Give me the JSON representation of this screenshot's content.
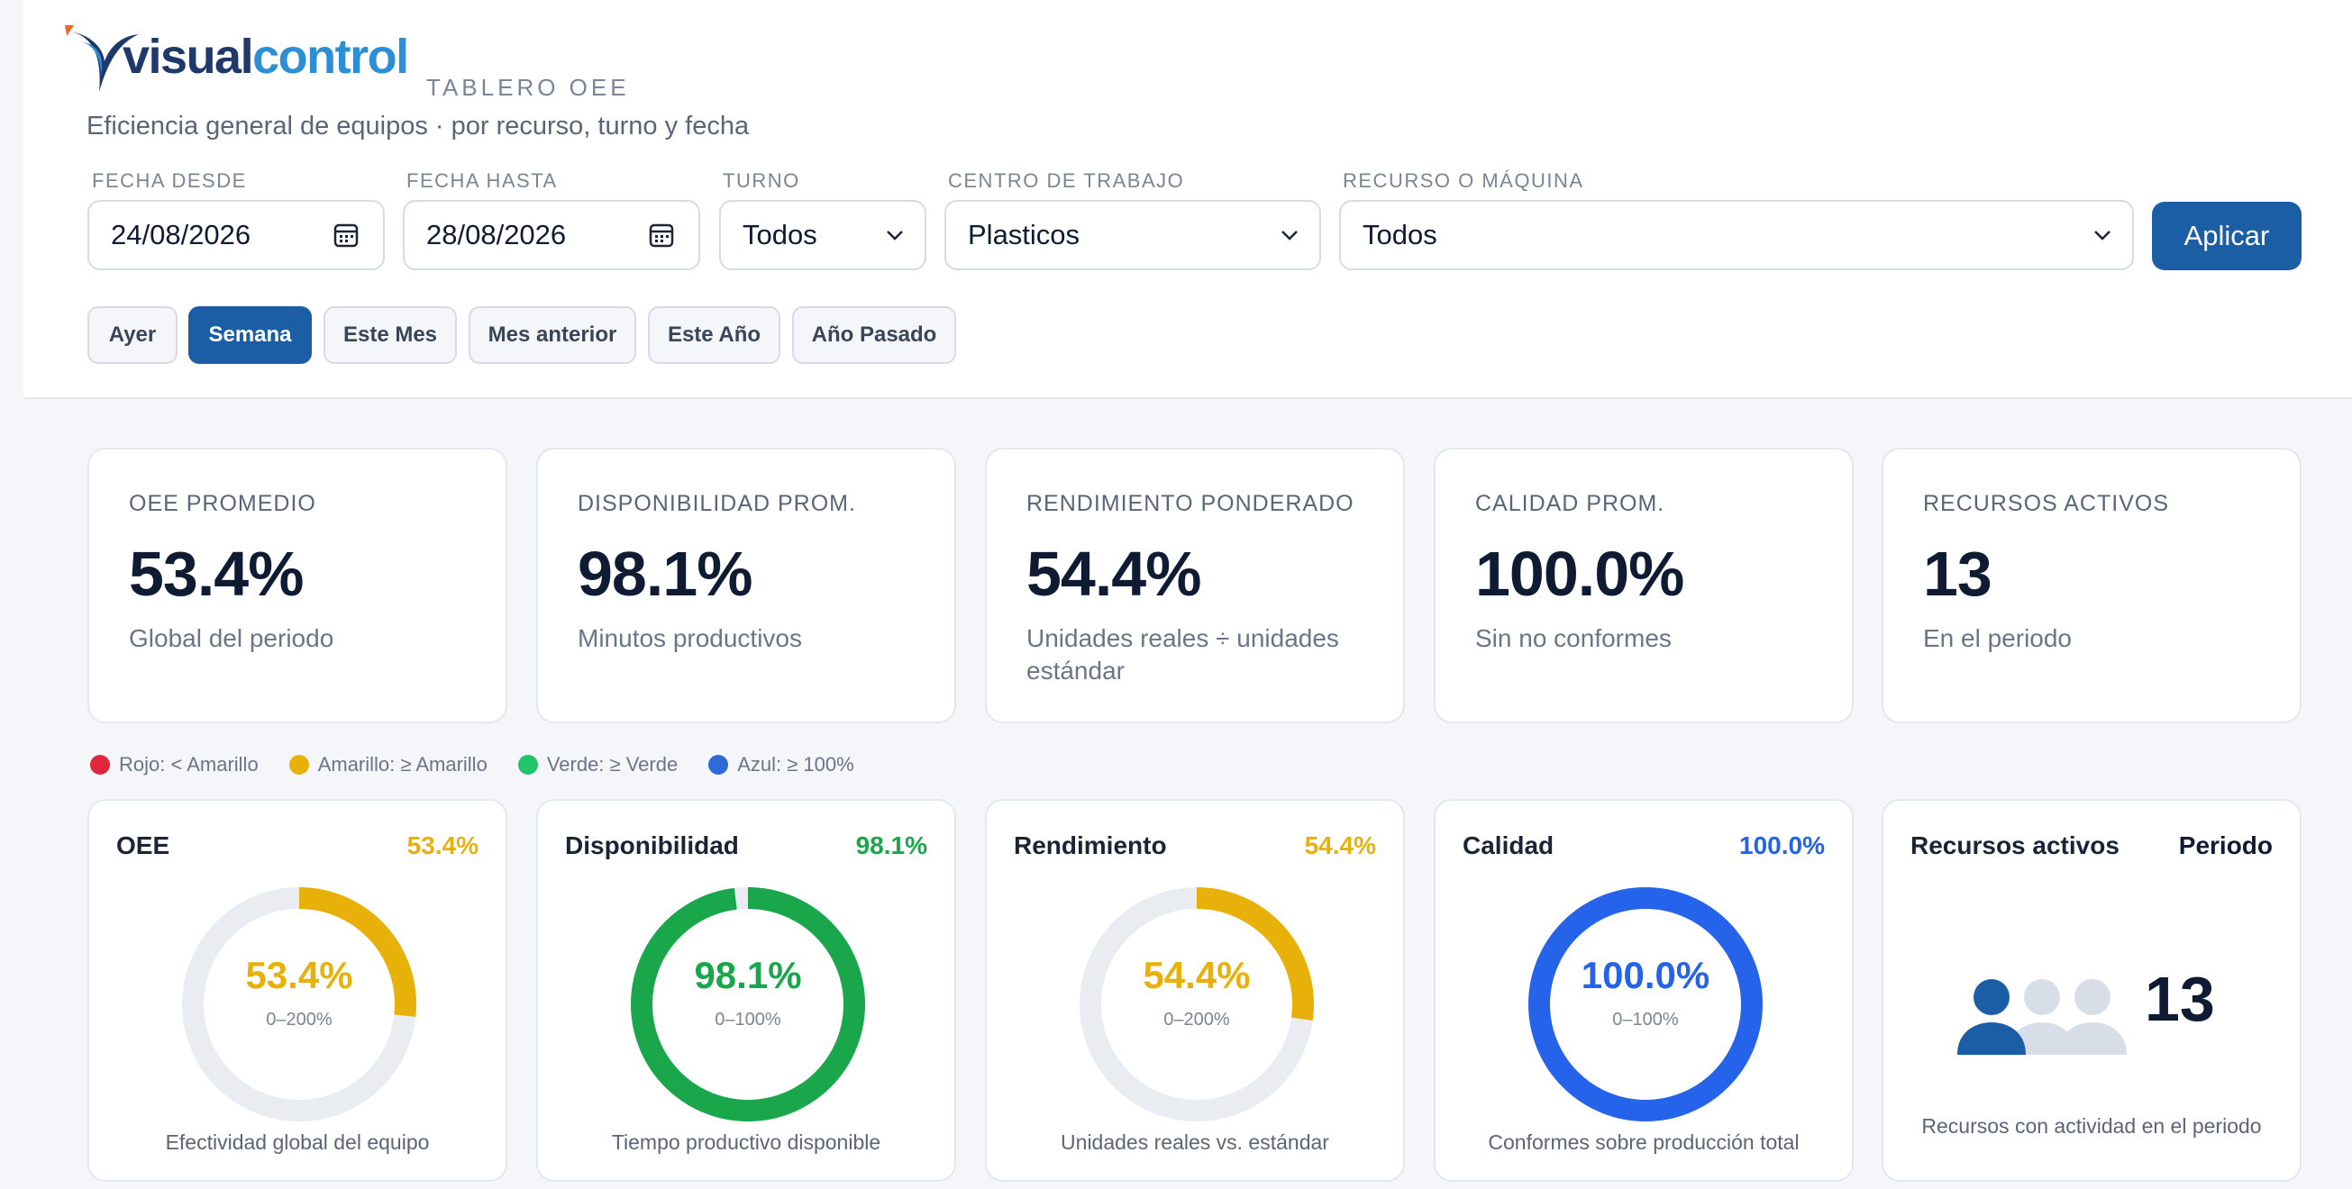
{
  "app": {
    "logo_part1": "visual",
    "logo_part2": "control",
    "board_title": "TABLERO OEE",
    "subtitle": "Eficiencia general de equipos · por recurso, turno y fecha"
  },
  "filters": {
    "date_from": {
      "label": "FECHA DESDE",
      "value": "24/08/2026"
    },
    "date_to": {
      "label": "FECHA HASTA",
      "value": "28/08/2026"
    },
    "shift": {
      "label": "TURNO",
      "value": "Todos"
    },
    "work_center": {
      "label": "CENTRO DE TRABAJO",
      "value": "Plasticos"
    },
    "resource": {
      "label": "RECURSO O MÁQUINA",
      "value": "Todos"
    },
    "apply_label": "Aplicar"
  },
  "presets": [
    {
      "label": "Ayer",
      "active": false
    },
    {
      "label": "Semana",
      "active": true
    },
    {
      "label": "Este Mes",
      "active": false
    },
    {
      "label": "Mes anterior",
      "active": false
    },
    {
      "label": "Este Año",
      "active": false
    },
    {
      "label": "Año Pasado",
      "active": false
    }
  ],
  "kpis": [
    {
      "label": "OEE PROMEDIO",
      "value": "53.4%",
      "sub": "Global del periodo"
    },
    {
      "label": "DISPONIBILIDAD PROM.",
      "value": "98.1%",
      "sub": "Minutos productivos"
    },
    {
      "label": "RENDIMIENTO PONDERADO",
      "value": "54.4%",
      "sub": "Unidades reales ÷ unidades estándar"
    },
    {
      "label": "CALIDAD PROM.",
      "value": "100.0%",
      "sub": "Sin no conformes"
    },
    {
      "label": "RECURSOS ACTIVOS",
      "value": "13",
      "sub": "En el periodo"
    }
  ],
  "legend": [
    {
      "label": "Rojo: < Amarillo",
      "color": "#e0283c"
    },
    {
      "label": "Amarillo: ≥ Amarillo",
      "color": "#e8b10a"
    },
    {
      "label": "Verde: ≥ Verde",
      "color": "#22c46a"
    },
    {
      "label": "Azul: ≥ 100%",
      "color": "#2f6bd8"
    }
  ],
  "gauges": [
    {
      "title": "OEE",
      "head_value": "53.4%",
      "center_value": "53.4%",
      "range": "0–200%",
      "fraction": 0.267,
      "color": "#e8b10a",
      "footer": "Efectividad global del equipo"
    },
    {
      "title": "Disponibilidad",
      "head_value": "98.1%",
      "center_value": "98.1%",
      "range": "0–100%",
      "fraction": 0.981,
      "color": "#1aa64a",
      "footer": "Tiempo productivo disponible"
    },
    {
      "title": "Rendimiento",
      "head_value": "54.4%",
      "center_value": "54.4%",
      "range": "0–200%",
      "fraction": 0.272,
      "color": "#e8b10a",
      "footer": "Unidades reales vs. estándar"
    },
    {
      "title": "Calidad",
      "head_value": "100.0%",
      "center_value": "100.0%",
      "range": "0–100%",
      "fraction": 1.0,
      "color": "#2563eb",
      "footer": "Conformes sobre producción total"
    }
  ],
  "resources_card": {
    "title": "Recursos activos",
    "period_label": "Periodo",
    "count": "13",
    "footer": "Recursos con actividad en el periodo",
    "icon": "users-icon"
  },
  "colors": {
    "primary": "#1c5ea6",
    "track": "#e9edf2"
  }
}
